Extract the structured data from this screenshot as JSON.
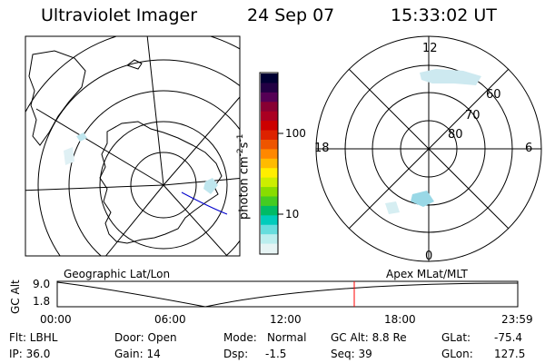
{
  "header": {
    "instrument": "Ultraviolet Imager",
    "date": "24 Sep 07",
    "time": "15:33:02 UT"
  },
  "colorbar": {
    "unit_label": "photon cm",
    "unit_exp1": "-2",
    "unit_s": "s",
    "unit_exp2": "-1",
    "tick_labels": [
      "100",
      "10"
    ]
  },
  "polar_plot": {
    "mlt_labels": {
      "top": "12",
      "bottom": "0",
      "left": "18",
      "right": "6"
    },
    "lat_labels": [
      "60",
      "70",
      "80"
    ]
  },
  "timeline": {
    "left_title": "Geographic Lat/Lon",
    "right_title": "Apex MLat/MLT",
    "y_axis_label": "GC Alt",
    "y_ticks": [
      "9.0",
      "1.8"
    ],
    "x_ticks": [
      "00:00",
      "06:00",
      "12:00",
      "18:00",
      "23:59"
    ],
    "marker_color": "#ff0000"
  },
  "info": {
    "row1": {
      "filter": "Flt: LBHL",
      "door": "Door: Open",
      "mode_label": "Mode:",
      "mode_value": "Normal",
      "gc_alt": "GC Alt: 8.8 Re",
      "glat_label": "GLat:",
      "glat_value": "-75.4"
    },
    "row2": {
      "ip": "IP: 36.0",
      "gain": "Gain: 14",
      "dsp_label": "Dsp:",
      "dsp_value": "-1.5",
      "seq": "Seq: 39",
      "glon_label": "GLon:",
      "glon_value": "127.5"
    }
  },
  "colors": {
    "colorbar": [
      "#000033",
      "#220044",
      "#550055",
      "#880033",
      "#aa0022",
      "#cc0000",
      "#dd2200",
      "#ee5500",
      "#ff8800",
      "#ffbb00",
      "#ffee00",
      "#ccee00",
      "#88dd00",
      "#44cc22",
      "#00bb66",
      "#00ccbb",
      "#66dddd",
      "#bbeeee",
      "#e6f4f4"
    ]
  }
}
